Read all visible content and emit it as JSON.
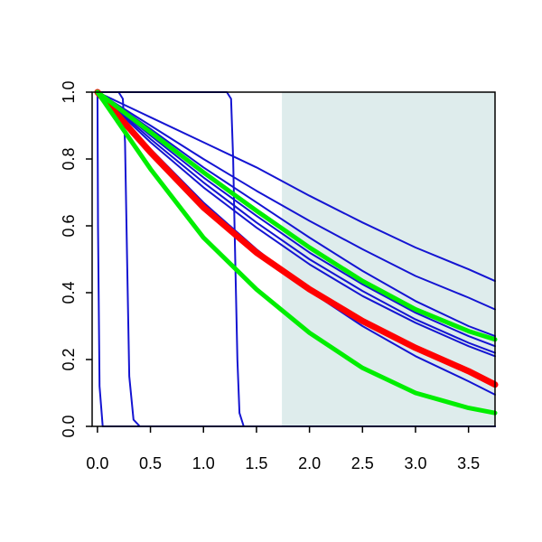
{
  "chart_data": {
    "type": "line",
    "title": "",
    "xlabel": "",
    "ylabel": "",
    "xlim": [
      -0.05,
      3.75
    ],
    "ylim": [
      0.0,
      1.0
    ],
    "x_ticks": [
      "0.0",
      "0.5",
      "1.0",
      "1.5",
      "2.0",
      "2.5",
      "3.0",
      "3.5"
    ],
    "y_ticks": [
      "0.0",
      "0.2",
      "0.4",
      "0.6",
      "0.8",
      "1.0"
    ],
    "shaded_region": {
      "x_from": 1.74,
      "x_to": 3.75,
      "color": "#deecec"
    },
    "grid": false,
    "legend": "none",
    "series": [
      {
        "color": "#1414d2",
        "width": 2,
        "points": [
          [
            0.0,
            1.0
          ],
          [
            0.005,
            0.6
          ],
          [
            0.02,
            0.12
          ],
          [
            0.05,
            0.0
          ],
          [
            3.75,
            0.0
          ]
        ]
      },
      {
        "color": "#1414d2",
        "width": 2,
        "points": [
          [
            0.0,
            1.0
          ],
          [
            0.2,
            1.0
          ],
          [
            0.24,
            0.98
          ],
          [
            0.26,
            0.85
          ],
          [
            0.28,
            0.5
          ],
          [
            0.3,
            0.15
          ],
          [
            0.34,
            0.02
          ],
          [
            0.4,
            0.0
          ],
          [
            3.75,
            0.0
          ]
        ]
      },
      {
        "color": "#1414d2",
        "width": 2,
        "points": [
          [
            0.0,
            1.0
          ],
          [
            1.22,
            1.0
          ],
          [
            1.26,
            0.98
          ],
          [
            1.28,
            0.8
          ],
          [
            1.3,
            0.5
          ],
          [
            1.32,
            0.2
          ],
          [
            1.34,
            0.04
          ],
          [
            1.38,
            0.0
          ],
          [
            3.75,
            0.0
          ]
        ]
      },
      {
        "color": "#1414d2",
        "width": 2,
        "points": [
          [
            0.0,
            1.0
          ],
          [
            0.5,
            0.925
          ],
          [
            1.0,
            0.85
          ],
          [
            1.5,
            0.775
          ],
          [
            2.0,
            0.69
          ],
          [
            2.5,
            0.61
          ],
          [
            3.0,
            0.535
          ],
          [
            3.5,
            0.47
          ],
          [
            3.75,
            0.435
          ]
        ]
      },
      {
        "color": "#1414d2",
        "width": 2,
        "points": [
          [
            0.0,
            1.0
          ],
          [
            0.5,
            0.9
          ],
          [
            1.0,
            0.8
          ],
          [
            1.5,
            0.705
          ],
          [
            2.0,
            0.615
          ],
          [
            2.5,
            0.53
          ],
          [
            3.0,
            0.45
          ],
          [
            3.5,
            0.385
          ],
          [
            3.75,
            0.35
          ]
        ]
      },
      {
        "color": "#1414d2",
        "width": 2,
        "points": [
          [
            0.0,
            1.0
          ],
          [
            0.5,
            0.89
          ],
          [
            1.0,
            0.775
          ],
          [
            1.5,
            0.67
          ],
          [
            2.0,
            0.565
          ],
          [
            2.5,
            0.465
          ],
          [
            3.0,
            0.375
          ],
          [
            3.5,
            0.3
          ],
          [
            3.75,
            0.27
          ]
        ]
      },
      {
        "color": "#1414d2",
        "width": 2,
        "points": [
          [
            0.0,
            1.0
          ],
          [
            0.5,
            0.87
          ],
          [
            1.0,
            0.745
          ],
          [
            1.5,
            0.63
          ],
          [
            2.0,
            0.52
          ],
          [
            2.5,
            0.425
          ],
          [
            3.0,
            0.34
          ],
          [
            3.5,
            0.27
          ],
          [
            3.75,
            0.24
          ]
        ]
      },
      {
        "color": "#1414d2",
        "width": 2,
        "points": [
          [
            0.0,
            1.0
          ],
          [
            0.5,
            0.86
          ],
          [
            1.0,
            0.73
          ],
          [
            1.5,
            0.61
          ],
          [
            2.0,
            0.5
          ],
          [
            2.5,
            0.405
          ],
          [
            3.0,
            0.32
          ],
          [
            3.5,
            0.25
          ],
          [
            3.75,
            0.22
          ]
        ]
      },
      {
        "color": "#1414d2",
        "width": 2,
        "points": [
          [
            0.0,
            1.0
          ],
          [
            0.5,
            0.85
          ],
          [
            1.0,
            0.715
          ],
          [
            1.5,
            0.595
          ],
          [
            2.0,
            0.485
          ],
          [
            2.5,
            0.39
          ],
          [
            3.0,
            0.31
          ],
          [
            3.5,
            0.24
          ],
          [
            3.75,
            0.21
          ]
        ]
      },
      {
        "color": "#1414d2",
        "width": 2,
        "points": [
          [
            0.0,
            1.0
          ],
          [
            0.5,
            0.83
          ],
          [
            1.0,
            0.67
          ],
          [
            1.5,
            0.53
          ],
          [
            2.0,
            0.405
          ],
          [
            2.5,
            0.3
          ],
          [
            3.0,
            0.21
          ],
          [
            3.5,
            0.135
          ],
          [
            3.75,
            0.095
          ]
        ]
      },
      {
        "color": "#ff0000",
        "width": 7,
        "points": [
          [
            0.0,
            1.0
          ],
          [
            0.5,
            0.82
          ],
          [
            1.0,
            0.655
          ],
          [
            1.5,
            0.52
          ],
          [
            2.0,
            0.41
          ],
          [
            2.5,
            0.315
          ],
          [
            3.0,
            0.235
          ],
          [
            3.5,
            0.165
          ],
          [
            3.75,
            0.125
          ]
        ]
      },
      {
        "color": "#00ee00",
        "width": 5,
        "points": [
          [
            0.0,
            1.0
          ],
          [
            0.5,
            0.88
          ],
          [
            1.0,
            0.76
          ],
          [
            1.5,
            0.645
          ],
          [
            2.0,
            0.535
          ],
          [
            2.5,
            0.435
          ],
          [
            3.0,
            0.35
          ],
          [
            3.5,
            0.285
          ],
          [
            3.75,
            0.26
          ]
        ]
      },
      {
        "color": "#00ee00",
        "width": 5,
        "points": [
          [
            0.0,
            1.0
          ],
          [
            0.5,
            0.77
          ],
          [
            1.0,
            0.565
          ],
          [
            1.5,
            0.41
          ],
          [
            2.0,
            0.28
          ],
          [
            2.5,
            0.175
          ],
          [
            3.0,
            0.1
          ],
          [
            3.5,
            0.055
          ],
          [
            3.75,
            0.04
          ]
        ]
      }
    ]
  }
}
